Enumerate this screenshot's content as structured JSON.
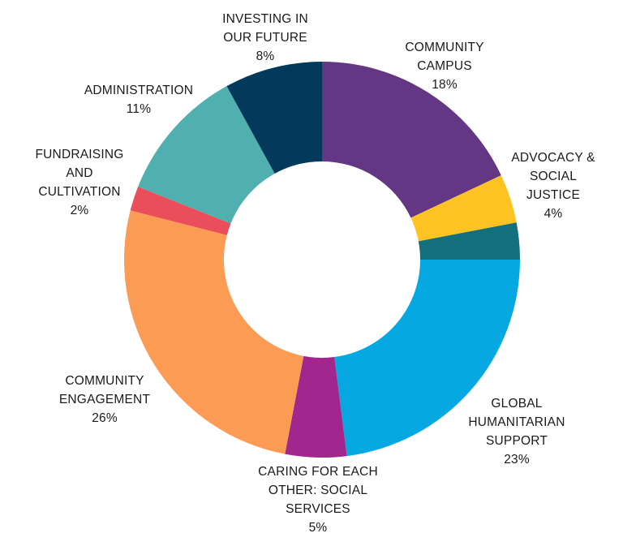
{
  "chart_data": {
    "type": "pie",
    "style": "donut",
    "title": "",
    "slices": [
      {
        "lines": [
          "COMMUNITY",
          "CAMPUS"
        ],
        "pct_label": "18%",
        "value": 18,
        "color": "#643785"
      },
      {
        "lines": [
          "ADVOCACY &",
          "SOCIAL",
          "JUSTICE"
        ],
        "pct_label": "4%",
        "value": 4,
        "color": "#FDC322"
      },
      {
        "lines": [],
        "pct_label": "",
        "value": 3,
        "color": "#136F7B"
      },
      {
        "lines": [
          "GLOBAL",
          "HUMANITARIAN",
          "SUPPORT"
        ],
        "pct_label": "23%",
        "value": 23,
        "color": "#05A8E1"
      },
      {
        "lines": [
          "CARING FOR EACH",
          "OTHER: SOCIAL",
          "SERVICES"
        ],
        "pct_label": "5%",
        "value": 5,
        "color": "#A1278E"
      },
      {
        "lines": [
          "COMMUNITY",
          "ENGAGEMENT"
        ],
        "pct_label": "26%",
        "value": 26,
        "color": "#FB9B54"
      },
      {
        "lines": [
          "FUNDRAISING",
          "AND",
          "CULTIVATION"
        ],
        "pct_label": "2%",
        "value": 2,
        "color": "#EB4E5B"
      },
      {
        "lines": [
          "ADMINISTRATION"
        ],
        "pct_label": "11%",
        "value": 11,
        "color": "#4FB0AF"
      },
      {
        "lines": [
          "INVESTING IN",
          "OUR FUTURE"
        ],
        "pct_label": "8%",
        "value": 8,
        "color": "#033A5B"
      }
    ]
  }
}
